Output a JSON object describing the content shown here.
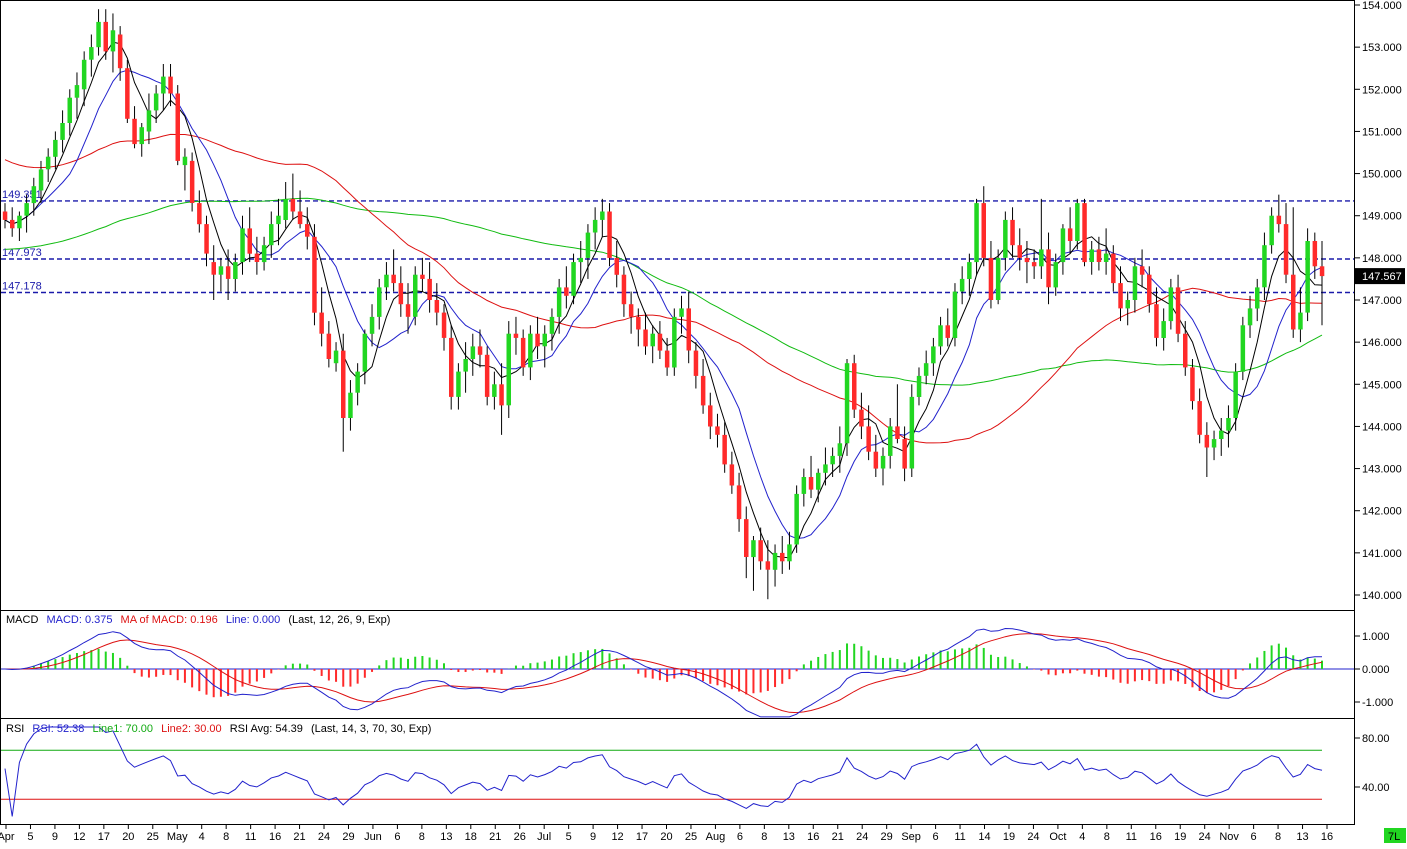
{
  "colors": {
    "bull": "#21d621",
    "bear": "#ff2a2a",
    "wick": "#000000",
    "ma_short": "#000000",
    "ma_mid": "#2222cc",
    "ma_long": "#dd1111",
    "ma_longest": "#11bb11",
    "level_line": "#1a1aaa",
    "macd_line": "#2222cc",
    "macd_signal": "#dd1111",
    "macd_hist_pos": "#21d621",
    "macd_hist_neg": "#ff2a2a",
    "rsi_line": "#2222cc",
    "rsi_upper": "#11aa11",
    "rsi_lower": "#dd1111",
    "last_price_box": "#000000",
    "corner_badge": "#21d621"
  },
  "price_axis": {
    "ticks": [
      "154.000",
      "153.000",
      "152.000",
      "151.000",
      "150.000",
      "149.000",
      "148.000",
      "147.000",
      "146.000",
      "145.000",
      "144.000",
      "143.000",
      "142.000",
      "141.000",
      "140.000"
    ],
    "ylim": [
      139.72,
      154.1
    ],
    "last_price": "147.567"
  },
  "levels": [
    {
      "value": 149.351,
      "label": "149.351"
    },
    {
      "value": 147.973,
      "label": "147.973"
    },
    {
      "value": 147.178,
      "label": "147.178"
    }
  ],
  "x_axis": {
    "tick_labels": [
      "Apr",
      "5",
      "9",
      "12",
      "17",
      "20",
      "25",
      "May",
      "4",
      "8",
      "11",
      "16",
      "21",
      "24",
      "29",
      "Jun",
      "6",
      "8",
      "13",
      "18",
      "21",
      "26",
      "Jul",
      "5",
      "9",
      "12",
      "17",
      "20",
      "25",
      "Aug",
      "6",
      "8",
      "13",
      "16",
      "21",
      "24",
      "29",
      "Sep",
      "6",
      "11",
      "14",
      "19",
      "24",
      "Oct",
      "4",
      "8",
      "11",
      "16",
      "19",
      "24",
      "Nov",
      "6",
      "8",
      "13",
      "16"
    ]
  },
  "macd": {
    "header": {
      "title": "MACD",
      "macd_label": "MACD: 0.375",
      "signal_label": "MA of MACD: 0.196",
      "line_label": "Line: 0.000",
      "params": "(Last, 12, 26, 9, Exp)"
    },
    "ticks": [
      "1.000",
      "0.000",
      "-1.000"
    ],
    "ylim": [
      -1.5,
      1.5
    ]
  },
  "rsi": {
    "header": {
      "title": "RSI",
      "rsi_label": "RSI: 52.38",
      "line1_label": "Line1: 70.00",
      "line2_label": "Line2: 30.00",
      "avg_label": "RSI Avg: 54.39",
      "params": "(Last, 14, 3, 70, 30, Exp)"
    },
    "ticks": [
      "80.00",
      "40.00"
    ],
    "ylim": [
      15,
      90
    ],
    "line1": 70,
    "line2": 30
  },
  "corner_badge": "7L",
  "chart_data": {
    "type": "candlestick",
    "candles": [
      [
        149.1,
        149.3,
        148.7,
        148.9
      ],
      [
        148.9,
        149.2,
        148.5,
        148.7
      ],
      [
        148.7,
        149.1,
        148.4,
        149.0
      ],
      [
        149.0,
        149.5,
        148.6,
        149.3
      ],
      [
        149.3,
        149.9,
        149.0,
        149.7
      ],
      [
        149.6,
        150.3,
        149.3,
        150.1
      ],
      [
        150.1,
        150.6,
        149.8,
        150.4
      ],
      [
        150.4,
        151.0,
        150.1,
        150.8
      ],
      [
        150.8,
        151.5,
        150.5,
        151.2
      ],
      [
        151.2,
        152.0,
        150.9,
        151.8
      ],
      [
        151.8,
        152.4,
        151.3,
        152.1
      ],
      [
        152.0,
        152.9,
        151.6,
        152.7
      ],
      [
        152.7,
        153.3,
        152.3,
        153.0
      ],
      [
        153.0,
        153.9,
        152.8,
        153.6
      ],
      [
        153.6,
        153.9,
        152.7,
        152.9
      ],
      [
        152.9,
        153.8,
        152.4,
        153.4
      ],
      [
        153.3,
        153.5,
        152.2,
        152.5
      ],
      [
        152.5,
        152.7,
        151.2,
        151.3
      ],
      [
        151.3,
        151.6,
        150.6,
        150.7
      ],
      [
        150.7,
        151.2,
        150.4,
        151.1
      ],
      [
        151.0,
        151.9,
        150.7,
        151.5
      ],
      [
        151.5,
        152.1,
        151.2,
        151.9
      ],
      [
        151.9,
        152.6,
        151.5,
        152.3
      ],
      [
        152.3,
        152.6,
        151.6,
        151.9
      ],
      [
        151.9,
        152.1,
        150.2,
        150.3
      ],
      [
        150.2,
        150.6,
        149.6,
        150.4
      ],
      [
        150.3,
        150.5,
        149.1,
        149.3
      ],
      [
        149.3,
        149.6,
        148.6,
        148.8
      ],
      [
        148.8,
        149.0,
        147.8,
        148.1
      ],
      [
        147.9,
        148.3,
        147.0,
        147.6
      ],
      [
        147.6,
        148.0,
        147.2,
        147.8
      ],
      [
        147.8,
        148.2,
        147.0,
        147.5
      ],
      [
        147.5,
        148.1,
        147.2,
        147.9
      ],
      [
        147.9,
        149.0,
        147.6,
        148.7
      ],
      [
        148.7,
        149.2,
        147.9,
        148.1
      ],
      [
        148.1,
        148.5,
        147.6,
        147.9
      ],
      [
        147.9,
        148.5,
        147.7,
        148.3
      ],
      [
        148.3,
        149.1,
        148.0,
        148.8
      ],
      [
        148.8,
        149.4,
        148.3,
        149.0
      ],
      [
        148.9,
        149.8,
        148.7,
        149.4
      ],
      [
        149.4,
        150.0,
        148.9,
        149.1
      ],
      [
        149.1,
        149.6,
        148.7,
        148.8
      ],
      [
        148.8,
        149.2,
        148.2,
        148.5
      ],
      [
        148.5,
        148.8,
        146.4,
        146.7
      ],
      [
        146.7,
        147.3,
        145.9,
        146.2
      ],
      [
        146.2,
        146.5,
        145.4,
        145.6
      ],
      [
        145.5,
        146.0,
        145.3,
        145.8
      ],
      [
        145.8,
        146.2,
        143.4,
        144.2
      ],
      [
        144.2,
        145.1,
        143.9,
        144.8
      ],
      [
        144.8,
        145.5,
        144.5,
        145.3
      ],
      [
        145.3,
        146.3,
        145.0,
        146.2
      ],
      [
        146.2,
        146.9,
        145.9,
        146.6
      ],
      [
        146.6,
        147.5,
        146.3,
        147.3
      ],
      [
        147.3,
        147.9,
        147.0,
        147.6
      ],
      [
        147.6,
        148.2,
        147.2,
        147.4
      ],
      [
        147.4,
        147.8,
        146.6,
        146.9
      ],
      [
        146.9,
        147.4,
        146.2,
        146.6
      ],
      [
        146.6,
        147.8,
        146.4,
        147.6
      ],
      [
        147.6,
        148.0,
        147.2,
        147.5
      ],
      [
        147.5,
        147.9,
        146.7,
        147.0
      ],
      [
        147.0,
        147.4,
        146.4,
        146.7
      ],
      [
        146.7,
        146.9,
        145.8,
        146.1
      ],
      [
        146.1,
        146.4,
        144.4,
        144.7
      ],
      [
        144.7,
        145.5,
        144.4,
        145.3
      ],
      [
        145.3,
        146.0,
        144.8,
        145.6
      ],
      [
        145.6,
        146.2,
        145.2,
        145.9
      ],
      [
        145.9,
        146.3,
        145.4,
        145.7
      ],
      [
        145.7,
        145.9,
        144.5,
        144.7
      ],
      [
        144.7,
        145.3,
        144.4,
        145.0
      ],
      [
        145.0,
        145.5,
        143.8,
        144.5
      ],
      [
        144.5,
        146.5,
        144.2,
        146.2
      ],
      [
        146.2,
        146.6,
        145.7,
        146.1
      ],
      [
        146.1,
        146.3,
        145.2,
        145.4
      ],
      [
        145.4,
        146.4,
        145.1,
        146.2
      ],
      [
        146.2,
        146.6,
        145.6,
        145.9
      ],
      [
        145.9,
        146.4,
        145.4,
        146.2
      ],
      [
        146.2,
        146.8,
        145.8,
        146.6
      ],
      [
        146.6,
        147.5,
        146.2,
        147.3
      ],
      [
        147.3,
        147.8,
        146.8,
        147.1
      ],
      [
        147.1,
        148.1,
        146.9,
        147.9
      ],
      [
        147.9,
        148.4,
        147.4,
        148.0
      ],
      [
        148.0,
        148.8,
        147.5,
        148.6
      ],
      [
        148.6,
        149.2,
        148.2,
        148.9
      ],
      [
        148.9,
        149.4,
        148.5,
        149.1
      ],
      [
        149.1,
        149.3,
        147.8,
        148.0
      ],
      [
        148.0,
        148.4,
        147.3,
        147.6
      ],
      [
        147.6,
        147.8,
        146.6,
        146.9
      ],
      [
        146.9,
        147.2,
        146.2,
        146.6
      ],
      [
        146.6,
        146.8,
        145.9,
        146.3
      ],
      [
        146.3,
        146.7,
        145.7,
        145.9
      ],
      [
        145.9,
        146.4,
        145.5,
        146.2
      ],
      [
        146.2,
        146.5,
        145.6,
        145.8
      ],
      [
        145.8,
        146.1,
        145.2,
        145.4
      ],
      [
        145.4,
        146.8,
        145.2,
        146.6
      ],
      [
        146.6,
        147.1,
        146.2,
        146.8
      ],
      [
        146.8,
        147.2,
        145.5,
        145.8
      ],
      [
        145.8,
        146.0,
        144.9,
        145.2
      ],
      [
        145.2,
        145.6,
        144.3,
        144.5
      ],
      [
        144.5,
        144.8,
        143.7,
        144.0
      ],
      [
        144.0,
        144.3,
        143.5,
        143.8
      ],
      [
        143.8,
        144.1,
        142.9,
        143.1
      ],
      [
        143.1,
        143.4,
        142.4,
        142.6
      ],
      [
        142.6,
        142.9,
        141.5,
        141.8
      ],
      [
        141.8,
        142.1,
        140.4,
        140.9
      ],
      [
        140.9,
        141.4,
        140.1,
        141.3
      ],
      [
        141.3,
        141.6,
        140.6,
        140.8
      ],
      [
        140.8,
        141.3,
        139.9,
        140.6
      ],
      [
        140.6,
        141.2,
        140.2,
        141.0
      ],
      [
        141.0,
        141.4,
        140.5,
        140.8
      ],
      [
        140.8,
        141.5,
        140.6,
        141.2
      ],
      [
        141.2,
        142.6,
        141.0,
        142.4
      ],
      [
        142.4,
        143.0,
        142.1,
        142.8
      ],
      [
        142.8,
        143.3,
        142.3,
        142.5
      ],
      [
        142.5,
        143.0,
        142.2,
        142.9
      ],
      [
        142.9,
        143.5,
        142.6,
        143.1
      ],
      [
        143.1,
        143.5,
        142.8,
        143.3
      ],
      [
        143.3,
        144.0,
        142.9,
        143.6
      ],
      [
        143.6,
        145.6,
        143.3,
        145.5
      ],
      [
        145.5,
        145.7,
        144.2,
        144.4
      ],
      [
        144.4,
        144.8,
        143.7,
        144.0
      ],
      [
        144.0,
        144.5,
        143.2,
        143.4
      ],
      [
        143.4,
        143.8,
        142.8,
        143.0
      ],
      [
        143.0,
        143.5,
        142.6,
        143.3
      ],
      [
        143.3,
        144.2,
        143.0,
        144.0
      ],
      [
        144.0,
        145.0,
        143.6,
        143.7
      ],
      [
        143.7,
        144.0,
        142.7,
        143.0
      ],
      [
        143.0,
        145.0,
        142.8,
        144.7
      ],
      [
        144.7,
        145.4,
        144.5,
        145.2
      ],
      [
        145.2,
        145.8,
        145.0,
        145.5
      ],
      [
        145.5,
        146.1,
        145.2,
        145.9
      ],
      [
        145.9,
        146.6,
        145.7,
        146.4
      ],
      [
        146.4,
        146.8,
        145.9,
        146.1
      ],
      [
        146.1,
        147.4,
        145.9,
        147.2
      ],
      [
        147.2,
        147.8,
        146.9,
        147.5
      ],
      [
        147.5,
        148.1,
        147.1,
        147.9
      ],
      [
        147.9,
        149.4,
        147.6,
        149.3
      ],
      [
        149.3,
        149.7,
        147.8,
        148.0
      ],
      [
        148.0,
        148.4,
        146.8,
        147.0
      ],
      [
        147.0,
        148.2,
        146.9,
        148.0
      ],
      [
        148.0,
        149.1,
        147.7,
        148.9
      ],
      [
        148.9,
        149.2,
        148.0,
        148.3
      ],
      [
        148.3,
        148.7,
        147.7,
        148.0
      ],
      [
        148.0,
        148.4,
        147.4,
        147.9
      ],
      [
        147.9,
        148.2,
        147.5,
        147.8
      ],
      [
        147.8,
        149.4,
        147.5,
        148.2
      ],
      [
        148.2,
        148.6,
        146.9,
        147.3
      ],
      [
        147.3,
        148.1,
        147.1,
        147.9
      ],
      [
        147.9,
        148.8,
        147.6,
        148.7
      ],
      [
        148.7,
        149.2,
        148.1,
        148.4
      ],
      [
        148.4,
        149.4,
        148.2,
        149.3
      ],
      [
        149.3,
        149.4,
        147.8,
        147.9
      ],
      [
        147.9,
        148.4,
        147.6,
        148.2
      ],
      [
        148.2,
        148.5,
        147.7,
        147.9
      ],
      [
        147.9,
        148.7,
        147.6,
        148.1
      ],
      [
        148.1,
        148.3,
        147.2,
        147.4
      ],
      [
        147.4,
        147.8,
        146.5,
        146.8
      ],
      [
        146.8,
        147.2,
        146.4,
        147.0
      ],
      [
        147.0,
        148.0,
        146.7,
        147.8
      ],
      [
        147.8,
        148.2,
        147.3,
        147.6
      ],
      [
        147.6,
        147.8,
        146.7,
        146.9
      ],
      [
        146.9,
        147.3,
        145.9,
        146.1
      ],
      [
        146.1,
        146.8,
        145.8,
        146.5
      ],
      [
        146.5,
        147.5,
        146.3,
        147.3
      ],
      [
        147.3,
        147.6,
        146.0,
        146.2
      ],
      [
        146.2,
        146.5,
        145.2,
        145.4
      ],
      [
        145.4,
        145.6,
        144.4,
        144.6
      ],
      [
        144.6,
        144.9,
        143.6,
        143.8
      ],
      [
        143.8,
        144.1,
        142.8,
        143.5
      ],
      [
        143.5,
        143.9,
        143.2,
        143.7
      ],
      [
        143.7,
        144.2,
        143.3,
        143.9
      ],
      [
        143.9,
        144.5,
        143.5,
        144.2
      ],
      [
        144.2,
        145.5,
        143.9,
        145.3
      ],
      [
        145.3,
        146.6,
        145.1,
        146.4
      ],
      [
        146.4,
        147.1,
        146.1,
        146.8
      ],
      [
        146.8,
        147.5,
        146.5,
        147.3
      ],
      [
        147.3,
        148.6,
        147.0,
        148.3
      ],
      [
        148.3,
        149.2,
        148.1,
        149.0
      ],
      [
        149.0,
        149.5,
        148.6,
        148.8
      ],
      [
        148.8,
        149.3,
        147.4,
        147.6
      ],
      [
        147.6,
        149.2,
        146.1,
        146.3
      ],
      [
        146.3,
        147.3,
        146.0,
        146.7
      ],
      [
        146.7,
        148.7,
        146.5,
        148.4
      ],
      [
        148.4,
        148.6,
        147.5,
        147.8
      ],
      [
        147.8,
        148.4,
        146.4,
        147.567
      ]
    ],
    "levels": [
      149.351,
      147.973,
      147.178
    ],
    "ylim": [
      139.72,
      154.1
    ],
    "moving_averages": [
      "short (black)",
      "mid (blue)",
      "long (red)",
      "longest (green)"
    ],
    "macd": {
      "params": "Last, 12, 26, 9, Exp",
      "last_macd": 0.375,
      "last_signal": 0.196,
      "zero_line": 0.0
    },
    "rsi": {
      "params": "Last, 14, 3, 70, 30, Exp",
      "last_rsi": 52.38,
      "last_avg": 54.39,
      "line1": 70.0,
      "line2": 30.0
    }
  }
}
